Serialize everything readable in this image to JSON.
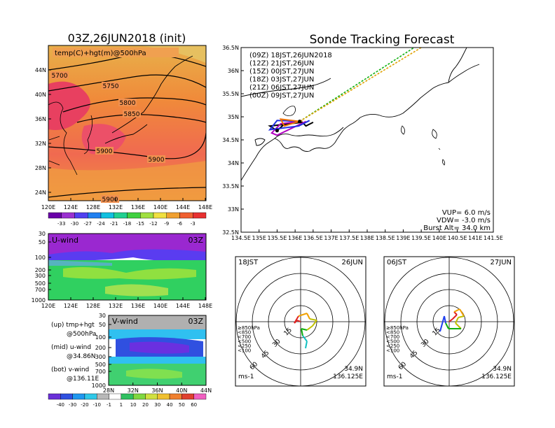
{
  "left_map": {
    "title": "03Z,26JUN2018 (init)",
    "label": "temp(C)+hgt(m)@500hPa",
    "lon_ticks": [
      "120E",
      "124E",
      "128E",
      "132E",
      "136E",
      "140E",
      "144E",
      "148E"
    ],
    "lat_ticks": [
      "44N",
      "40N",
      "36N",
      "32N",
      "28N",
      "24N"
    ],
    "contour_labels": [
      "5700",
      "5750",
      "5800",
      "5850",
      "5900",
      "5900",
      "5900"
    ],
    "colorbar_values": [
      "-33",
      "-30",
      "-27",
      "-24",
      "-21",
      "-18",
      "-15",
      "-12",
      "-9",
      "-6",
      "-3"
    ]
  },
  "u_panel": {
    "label": "U-wind",
    "time": "03Z",
    "p_ticks": [
      "30",
      "50",
      "100",
      "200",
      "300",
      "500",
      "700",
      "1000"
    ],
    "lon_ticks": [
      "120E",
      "124E",
      "128E",
      "132E",
      "136E",
      "140E",
      "144E",
      "148E"
    ]
  },
  "v_panel": {
    "label": "V-wind",
    "time": "03Z",
    "p_ticks": [
      "30",
      "50",
      "100",
      "200",
      "300",
      "500",
      "700",
      "1000"
    ],
    "lat_ticks": [
      "28N",
      "32N",
      "36N",
      "40N",
      "44N"
    ]
  },
  "notes": [
    {
      "line1": "(up) tmp+hgt",
      "line2": "@500hPa"
    },
    {
      "line1": "(mid) u-wind",
      "line2": "@34.86N"
    },
    {
      "line1": "(bot) v-wind",
      "line2": "@136.11E"
    }
  ],
  "wind_colorbar_values": [
    "-40",
    "-30",
    "-20",
    "-10",
    "-1",
    "1",
    "10",
    "20",
    "30",
    "40",
    "50",
    "60"
  ],
  "tracking": {
    "title": "Sonde Tracking Forecast",
    "lon_ticks": [
      "134.5E",
      "135E",
      "135.5E",
      "136E",
      "136.5E",
      "137E",
      "137.5E",
      "138E",
      "138.5E",
      "139E",
      "139.5E",
      "140E",
      "140.5E",
      "141E",
      "141.5E"
    ],
    "lat_ticks": [
      "36.5N",
      "36N",
      "35.5N",
      "35N",
      "34.5N",
      "34N",
      "33.5N",
      "33N",
      "32.5N"
    ],
    "legend": [
      {
        "text": "(09Z)  18JST,26JUN2018",
        "color": "#000000"
      },
      {
        "text": "(12Z)  21JST,26JUN",
        "color": "#b000c0"
      },
      {
        "text": "(15Z)  00JST,27JUN",
        "color": "#2030e0"
      },
      {
        "text": "(18Z)  03JST,27JUN",
        "color": "#10b010"
      },
      {
        "text": "(21Z)  06JST,27JUN",
        "color": "#e0a000"
      },
      {
        "text": "(00Z)  09JST,27JUN",
        "color": "#f07000"
      }
    ],
    "vup": "VUP=  6.0  m/s",
    "vdw": "VDW=  -3.0  m/s",
    "burst": "Burst Alt=  34.0  km"
  },
  "hodographs": [
    {
      "time": "18JST",
      "date": "26JUN",
      "lat": "34.9N",
      "lon": "136.125E",
      "unit": "ms-1"
    },
    {
      "time": "06JST",
      "date": "27JUN",
      "lat": "34.9N",
      "lon": "136.125E",
      "unit": "ms-1"
    }
  ],
  "hodo_rings": [
    "15",
    "30",
    "45",
    "60"
  ],
  "hodo_levels": [
    {
      "text": "≥850hPa",
      "color": "#e02020"
    },
    {
      "text": "<850",
      "color": "#f0a000"
    },
    {
      "text": "<700",
      "color": "#c0c000"
    },
    {
      "text": "<500",
      "color": "#10b010"
    },
    {
      "text": "<250",
      "color": "#10c0c0"
    },
    {
      "text": "<100",
      "color": "#2040f0"
    }
  ],
  "chart_data": [
    {
      "type": "heatmap",
      "title": "03Z,26JUN2018 (init)",
      "subtitle": "temp(C)+hgt(m)@500hPa",
      "xlim": [
        "120E",
        "148E"
      ],
      "ylim": [
        "24N",
        "44N"
      ],
      "contours": [
        5700,
        5750,
        5800,
        5850,
        5900
      ],
      "colorbar": [
        -33,
        -30,
        -27,
        -24,
        -21,
        -18,
        -15,
        -12,
        -9,
        -6,
        -3
      ]
    },
    {
      "type": "line",
      "title": "Sonde Tracking Forecast",
      "xlim": [
        134.5,
        141.5
      ],
      "ylim": [
        32.5,
        36.5
      ],
      "series": [
        {
          "name": "(09Z)  18JST,26JUN2018",
          "x": [
            136.125,
            135.7,
            135.5,
            135.3,
            136.2,
            136.3,
            136.5
          ],
          "y": [
            34.9,
            34.84,
            34.7,
            34.8,
            34.88,
            34.8,
            34.88
          ]
        },
        {
          "name": "(12Z)  21JST,26JUN",
          "x": [
            136.125,
            135.6,
            135.35,
            135.5,
            136.3
          ],
          "y": [
            34.9,
            34.85,
            34.65,
            34.6,
            34.9
          ]
        },
        {
          "name": "(15Z)  00JST,27JUN",
          "x": [
            136.125,
            135.5,
            135.3,
            136.1,
            136.4
          ],
          "y": [
            34.9,
            34.92,
            34.72,
            34.8,
            34.92
          ]
        },
        {
          "name": "(18Z)  03JST,27JUN",
          "x": [
            136.125,
            139.3,
            141.5
          ],
          "y": [
            34.9,
            36.5,
            37.5
          ]
        },
        {
          "name": "(21Z)  06JST,27JUN",
          "x": [
            136.125,
            139.5
          ],
          "y": [
            34.9,
            36.5
          ]
        },
        {
          "name": "(00Z)  09JST,27JUN",
          "x": [
            136.125,
            135.6,
            135.7,
            136.2
          ],
          "y": [
            34.9,
            34.95,
            34.8,
            34.92
          ]
        }
      ]
    }
  ]
}
